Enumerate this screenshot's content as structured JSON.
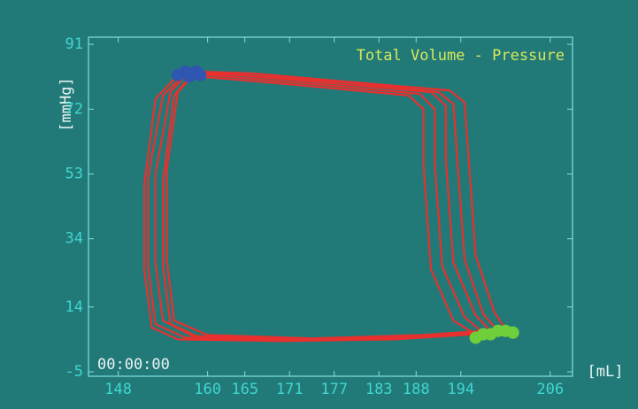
{
  "chart_data": {
    "type": "line",
    "title": "Total Volume - Pressure",
    "x_label": "[mL]",
    "y_label": "[mmHg]",
    "timestamp": "00:00:00",
    "xlim": [
      144,
      209
    ],
    "ylim": [
      -6.3,
      93.1
    ],
    "xticks": [
      148,
      160,
      165,
      171,
      177,
      183,
      188,
      194,
      206
    ],
    "yticks": [
      -5,
      14,
      34,
      53,
      72,
      91
    ],
    "background": "#227a78",
    "series": [
      {
        "color": "#e8302e",
        "mode": "line",
        "x": [
          196,
          193,
          190,
          189,
          189,
          187,
          175,
          162,
          156,
          153,
          151.5,
          151.5,
          152.5,
          156,
          170,
          185,
          196
        ],
        "y": [
          6,
          10,
          25,
          55,
          72,
          76,
          78.5,
          81,
          82,
          75,
          50,
          25,
          8,
          4.5,
          4,
          4.5,
          6
        ]
      },
      {
        "color": "#e8302e",
        "mode": "line",
        "x": [
          197,
          194.5,
          191.5,
          190.5,
          190.5,
          188.5,
          176,
          163,
          157,
          154,
          152,
          152,
          153,
          157,
          171,
          186,
          197
        ],
        "y": [
          6.5,
          11,
          26,
          56,
          72,
          76.5,
          79,
          81.5,
          82.5,
          76,
          52,
          26,
          9,
          5,
          4.3,
          5,
          6.5
        ]
      },
      {
        "color": "#e8302e",
        "mode": "line",
        "x": [
          198,
          196,
          193,
          192,
          192,
          190,
          177,
          164,
          157.5,
          155,
          153,
          153,
          154,
          158,
          172,
          187,
          198
        ],
        "y": [
          7,
          11.5,
          27,
          57,
          73,
          77,
          79.5,
          82,
          83,
          77,
          53,
          27,
          10,
          5.5,
          4.6,
          5.5,
          7
        ]
      },
      {
        "color": "#e8302e",
        "mode": "line",
        "x": [
          199,
          197,
          194.5,
          193.5,
          193,
          191,
          178,
          165,
          158,
          155.5,
          154,
          154,
          155,
          159,
          173,
          188,
          199
        ],
        "y": [
          7,
          12,
          28,
          58,
          73.5,
          77,
          80,
          82,
          82.5,
          76,
          51,
          26,
          9,
          5,
          4.4,
          5.2,
          7
        ]
      },
      {
        "color": "#e8302e",
        "mode": "line",
        "x": [
          200,
          198.5,
          196,
          195,
          194.5,
          192.5,
          179,
          166,
          158.5,
          156,
          154.5,
          154.5,
          155.5,
          160,
          174,
          189,
          200
        ],
        "y": [
          7.5,
          12.5,
          29,
          59,
          74,
          77.5,
          80,
          82.5,
          83,
          77,
          54,
          28,
          10,
          5.8,
          4.8,
          5.8,
          7.5
        ]
      },
      {
        "color": "#2f56b0",
        "mode": "markers",
        "x": [
          156,
          157,
          158,
          159,
          157.5,
          158.5
        ],
        "y": [
          82,
          83,
          82.5,
          82,
          81.5,
          83
        ]
      },
      {
        "color": "#6fcf3a",
        "mode": "markers",
        "x": [
          196,
          197,
          198,
          199,
          200,
          201
        ],
        "y": [
          5,
          6,
          6,
          7,
          7,
          6.5
        ]
      }
    ]
  }
}
